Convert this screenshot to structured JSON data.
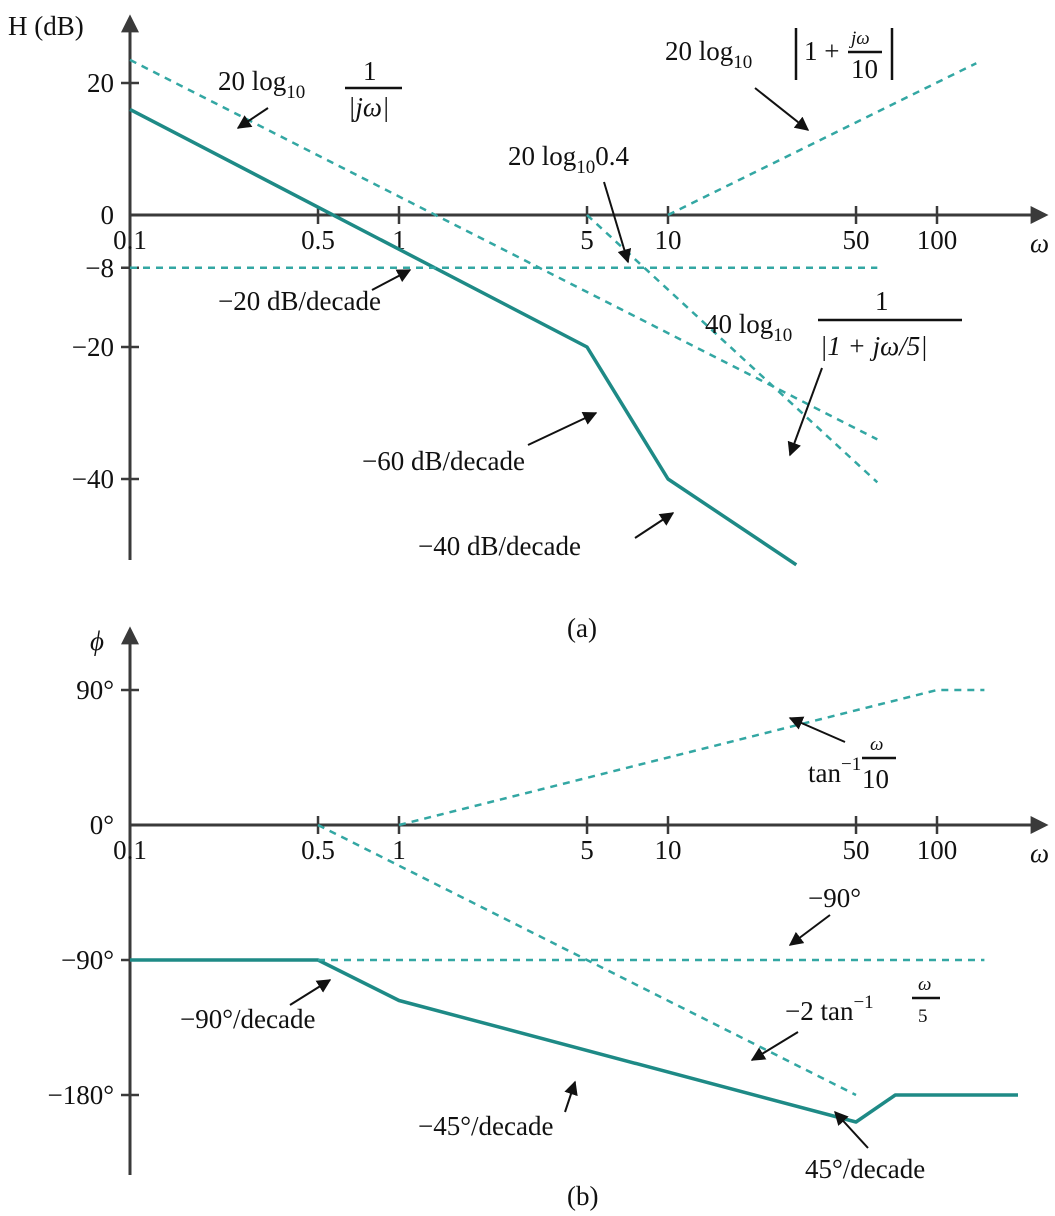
{
  "colors": {
    "solid": "#1e8a86",
    "dashed": "#33a7a3",
    "axis": "#3a3a3a",
    "text": "#111111"
  },
  "chart_data": [
    {
      "type": "line",
      "panel_label": "(a)",
      "ylabel": "H (dB)",
      "xlabel": "ω",
      "x_scale": "log",
      "xlim": [
        0.1,
        200
      ],
      "ylim": [
        -53,
        27
      ],
      "x_ticks": [
        0.1,
        0.5,
        1,
        5,
        10,
        50,
        100
      ],
      "x_tick_labels": [
        "0.1",
        "0.5",
        "1",
        "5",
        "10",
        "50",
        "100"
      ],
      "y_ticks": [
        20,
        0,
        -8,
        -20,
        -40
      ],
      "y_tick_labels": [
        "20",
        "0",
        "−8",
        "−20",
        "−40"
      ],
      "series": [
        {
          "style": "solid",
          "x": [
            0.1,
            5,
            10,
            30
          ],
          "y": [
            16,
            -20,
            -40,
            -53
          ]
        },
        {
          "style": "dashed",
          "x": [
            0.1,
            60
          ],
          "y": [
            23.5,
            -34
          ]
        },
        {
          "style": "dashed",
          "x": [
            0.1,
            60
          ],
          "y": [
            -8,
            -8
          ]
        },
        {
          "style": "dashed",
          "x": [
            5,
            60
          ],
          "y": [
            0,
            -40.5
          ]
        },
        {
          "style": "dashed",
          "x": [
            10,
            140
          ],
          "y": [
            0,
            23
          ]
        }
      ],
      "annotations": {
        "integrator": "20 log10 1/|jω|",
        "zero": "20 log10 |1 + jω/10|",
        "gain": "20 log10 0.4",
        "pole": "40 log10 1/|1 + jω/5|",
        "slope_20": "−20 dB/decade",
        "slope_60": "−60 dB/decade",
        "slope_40": "−40 dB/decade"
      }
    },
    {
      "type": "line",
      "panel_label": "(b)",
      "ylabel": "ϕ",
      "xlabel": "ω",
      "x_scale": "log",
      "xlim": [
        0.1,
        200
      ],
      "ylim": [
        -230,
        125
      ],
      "x_ticks": [
        0.1,
        0.5,
        1,
        5,
        10,
        50,
        100
      ],
      "x_tick_labels": [
        "0.1",
        "0.5",
        "1",
        "5",
        "10",
        "50",
        "100"
      ],
      "y_ticks": [
        90,
        0,
        -90,
        -180
      ],
      "y_tick_labels": [
        "90°",
        "0°",
        "−90°",
        "−180°"
      ],
      "series": [
        {
          "style": "solid",
          "x": [
            0.1,
            0.5,
            1,
            50,
            70,
            200
          ],
          "y": [
            -90,
            -90,
            -117,
            -198,
            -180,
            -180
          ]
        },
        {
          "style": "dashed",
          "x": [
            0.5,
            50
          ],
          "y": [
            0,
            -180
          ]
        },
        {
          "style": "dashed",
          "x": [
            0.5,
            150
          ],
          "y": [
            -90,
            -90
          ]
        },
        {
          "style": "dashed",
          "x": [
            1,
            100,
            150
          ],
          "y": [
            0,
            90,
            90
          ]
        }
      ],
      "annotations": {
        "atan": "tan⁻¹ ω/10",
        "minus90": "−90°",
        "double_atan": "−2 tan⁻¹ ω/5",
        "slope_90": "−90°/decade",
        "slope_45n": "−45°/decade",
        "slope_45p": "45°/decade"
      }
    }
  ]
}
